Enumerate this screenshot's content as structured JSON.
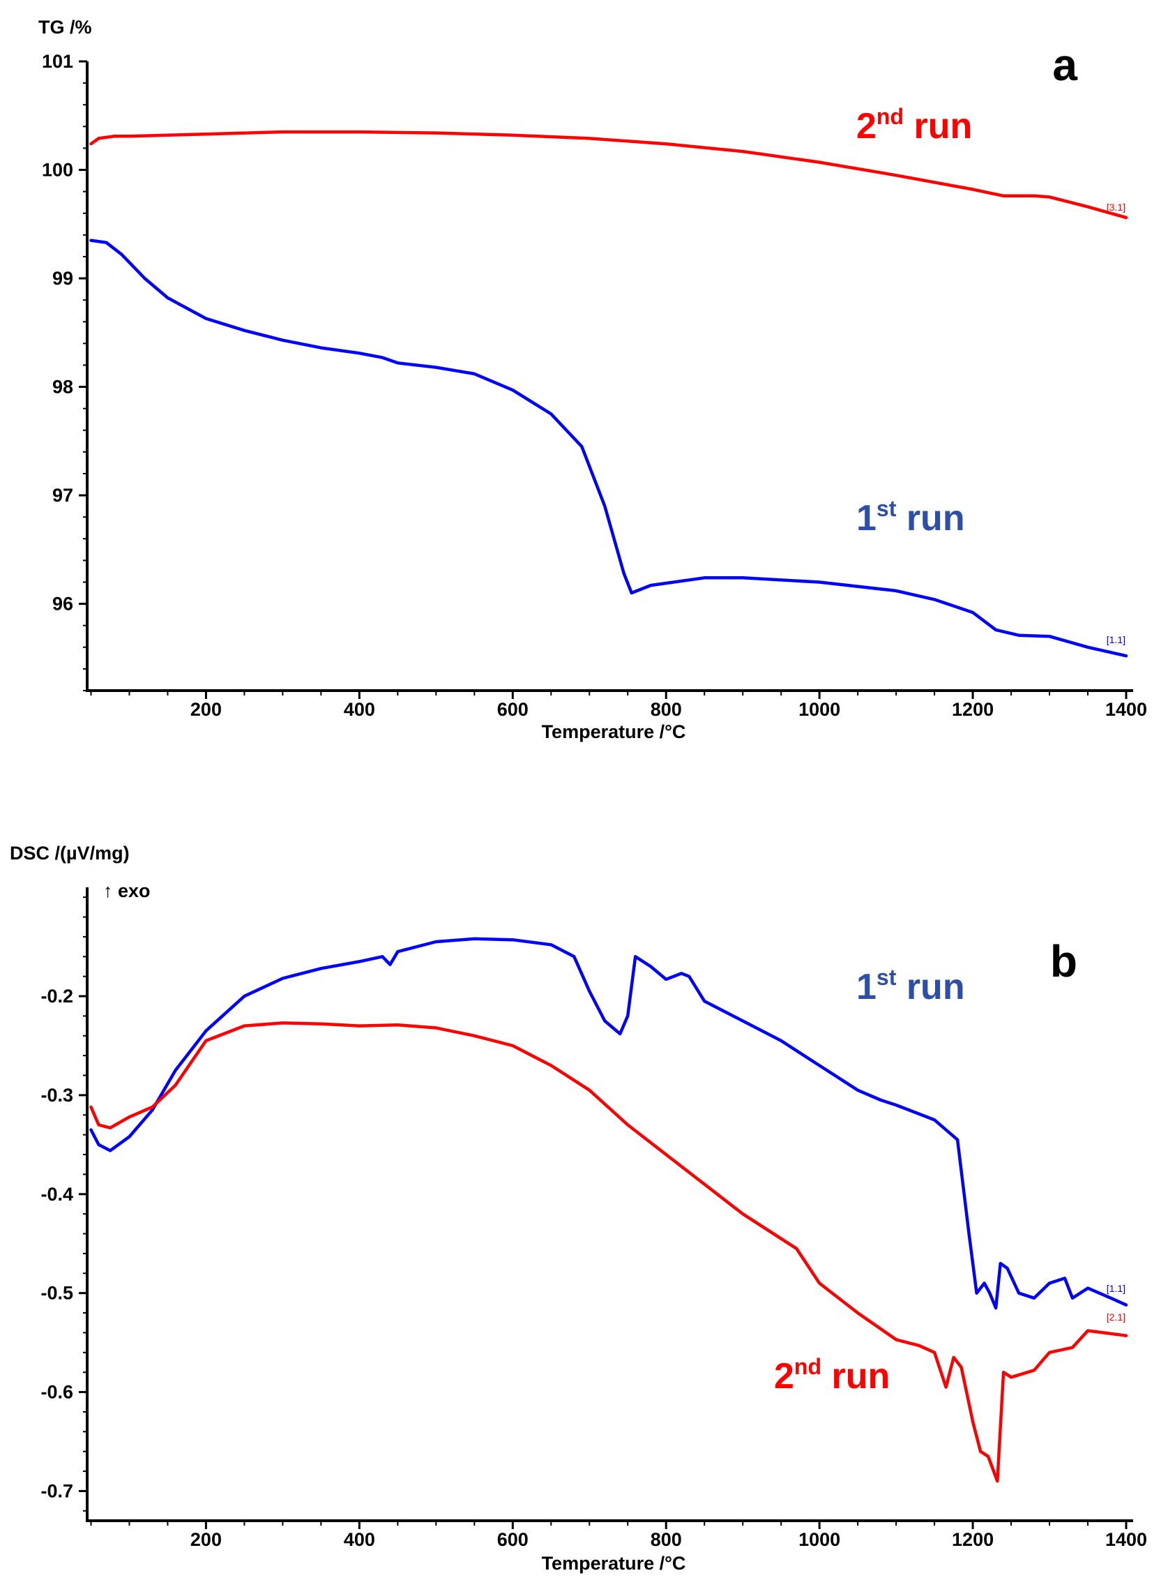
{
  "chart_data": [
    {
      "type": "line",
      "panel": "a",
      "ylabel": "TG /%",
      "xlabel": "Temperature /°C",
      "xlim": [
        45,
        1400
      ],
      "ylim": [
        95.2,
        101
      ],
      "xticks": [
        200,
        400,
        600,
        800,
        1000,
        1200,
        1400
      ],
      "yticks": [
        96,
        97,
        98,
        99,
        100,
        101
      ],
      "series": [
        {
          "name": "2nd run",
          "label_main": "2",
          "label_sup": "nd",
          "label_rest": " run",
          "tag": "[3.1]",
          "color": "#ff0000",
          "x": [
            50,
            60,
            80,
            100,
            150,
            200,
            300,
            400,
            500,
            600,
            700,
            800,
            900,
            920,
            1000,
            1100,
            1200,
            1240,
            1280,
            1300,
            1350,
            1400
          ],
          "y": [
            100.24,
            100.29,
            100.31,
            100.31,
            100.32,
            100.33,
            100.35,
            100.35,
            100.34,
            100.32,
            100.29,
            100.24,
            100.17,
            100.15,
            100.07,
            99.95,
            99.82,
            99.76,
            99.76,
            99.75,
            99.66,
            99.56
          ]
        },
        {
          "name": "1st run",
          "label_main": "1",
          "label_sup": "st",
          "label_rest": " run",
          "tag": "[1.1]",
          "color": "#0000ff",
          "x": [
            50,
            70,
            90,
            120,
            150,
            200,
            250,
            300,
            350,
            400,
            430,
            450,
            500,
            550,
            600,
            650,
            690,
            720,
            745,
            755,
            780,
            850,
            900,
            1000,
            1100,
            1150,
            1200,
            1230,
            1260,
            1300,
            1350,
            1400
          ],
          "y": [
            99.35,
            99.33,
            99.22,
            99.0,
            98.82,
            98.63,
            98.52,
            98.43,
            98.36,
            98.31,
            98.27,
            98.22,
            98.18,
            98.12,
            97.97,
            97.75,
            97.45,
            96.9,
            96.28,
            96.1,
            96.17,
            96.24,
            96.24,
            96.2,
            96.12,
            96.04,
            95.92,
            95.76,
            95.71,
            95.7,
            95.6,
            95.52
          ]
        }
      ]
    },
    {
      "type": "line",
      "panel": "b",
      "ylabel": "DSC /(µV/mg)",
      "annotation": "↑ exo",
      "xlabel": "Temperature /°C",
      "xlim": [
        45,
        1400
      ],
      "ylim": [
        -0.73,
        -0.09
      ],
      "xticks": [
        200,
        400,
        600,
        800,
        1000,
        1200,
        1400
      ],
      "yticks": [
        -0.2,
        -0.3,
        -0.4,
        -0.5,
        -0.6,
        -0.7
      ],
      "series": [
        {
          "name": "1st run",
          "label_main": "1",
          "label_sup": "st",
          "label_rest": " run",
          "tag": "[1.1]",
          "color": "#0000ff",
          "x": [
            50,
            60,
            75,
            100,
            130,
            160,
            200,
            250,
            300,
            350,
            400,
            430,
            440,
            450,
            500,
            550,
            600,
            650,
            680,
            700,
            720,
            740,
            750,
            760,
            780,
            800,
            820,
            830,
            850,
            900,
            950,
            1000,
            1050,
            1080,
            1100,
            1150,
            1180,
            1195,
            1205,
            1215,
            1222,
            1230,
            1236,
            1245,
            1260,
            1280,
            1300,
            1320,
            1330,
            1350,
            1380,
            1400
          ],
          "y": [
            -0.335,
            -0.35,
            -0.356,
            -0.342,
            -0.315,
            -0.275,
            -0.235,
            -0.2,
            -0.182,
            -0.172,
            -0.165,
            -0.16,
            -0.168,
            -0.155,
            -0.145,
            -0.142,
            -0.143,
            -0.148,
            -0.16,
            -0.195,
            -0.225,
            -0.238,
            -0.22,
            -0.16,
            -0.17,
            -0.183,
            -0.177,
            -0.18,
            -0.205,
            -0.225,
            -0.245,
            -0.27,
            -0.295,
            -0.305,
            -0.31,
            -0.325,
            -0.345,
            -0.44,
            -0.5,
            -0.49,
            -0.5,
            -0.515,
            -0.47,
            -0.475,
            -0.5,
            -0.505,
            -0.49,
            -0.485,
            -0.505,
            -0.495,
            -0.505,
            -0.512
          ]
        },
        {
          "name": "2nd run",
          "label_main": "2",
          "label_sup": "nd",
          "label_rest": " run",
          "tag": "[2.1]",
          "color": "#ff0000",
          "x": [
            50,
            60,
            75,
            100,
            130,
            160,
            200,
            250,
            300,
            350,
            400,
            450,
            500,
            550,
            600,
            650,
            700,
            750,
            800,
            850,
            900,
            950,
            970,
            1000,
            1050,
            1100,
            1130,
            1150,
            1165,
            1175,
            1185,
            1200,
            1210,
            1220,
            1232,
            1240,
            1250,
            1280,
            1300,
            1330,
            1350,
            1370,
            1400
          ],
          "y": [
            -0.312,
            -0.33,
            -0.333,
            -0.322,
            -0.312,
            -0.29,
            -0.245,
            -0.23,
            -0.227,
            -0.228,
            -0.23,
            -0.229,
            -0.232,
            -0.24,
            -0.25,
            -0.27,
            -0.295,
            -0.33,
            -0.36,
            -0.39,
            -0.42,
            -0.445,
            -0.455,
            -0.49,
            -0.52,
            -0.547,
            -0.553,
            -0.56,
            -0.595,
            -0.565,
            -0.575,
            -0.63,
            -0.66,
            -0.665,
            -0.69,
            -0.58,
            -0.585,
            -0.578,
            -0.56,
            -0.555,
            -0.538,
            -0.54,
            -0.543
          ]
        }
      ]
    }
  ]
}
